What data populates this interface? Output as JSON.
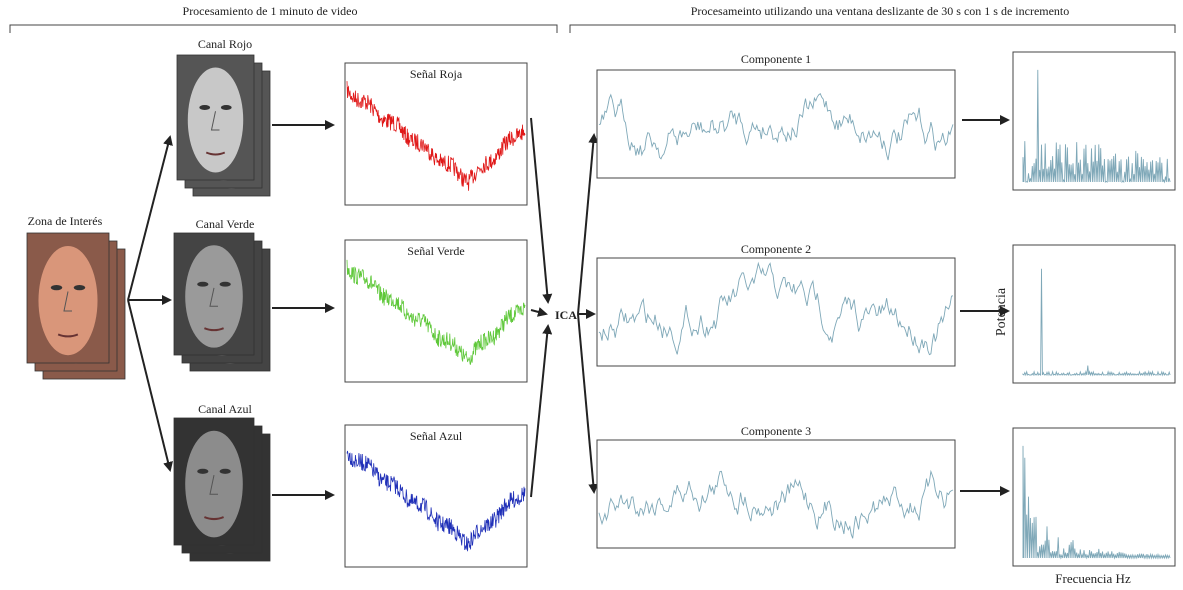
{
  "headers": {
    "left": "Procesamiento de 1 minuto de video",
    "right": "Procesameinto utilizando una ventana deslizante de 30 s con 1 s de incremento"
  },
  "roi": {
    "label": "Zona de Interés"
  },
  "channels": [
    {
      "label": "Canal Rojo",
      "signal": "Señal Roja"
    },
    {
      "label": "Canal Verde",
      "signal": "Señal Verde"
    },
    {
      "label": "Canal Azul",
      "signal": "Señal Azul"
    }
  ],
  "ica": "ICA",
  "components": [
    {
      "title": "Componente 1"
    },
    {
      "title": "Componente 2"
    },
    {
      "title": "Componente 3"
    }
  ],
  "spectrum": {
    "y_label": "Potencia",
    "x_label": "Frecuencia Hz"
  }
}
